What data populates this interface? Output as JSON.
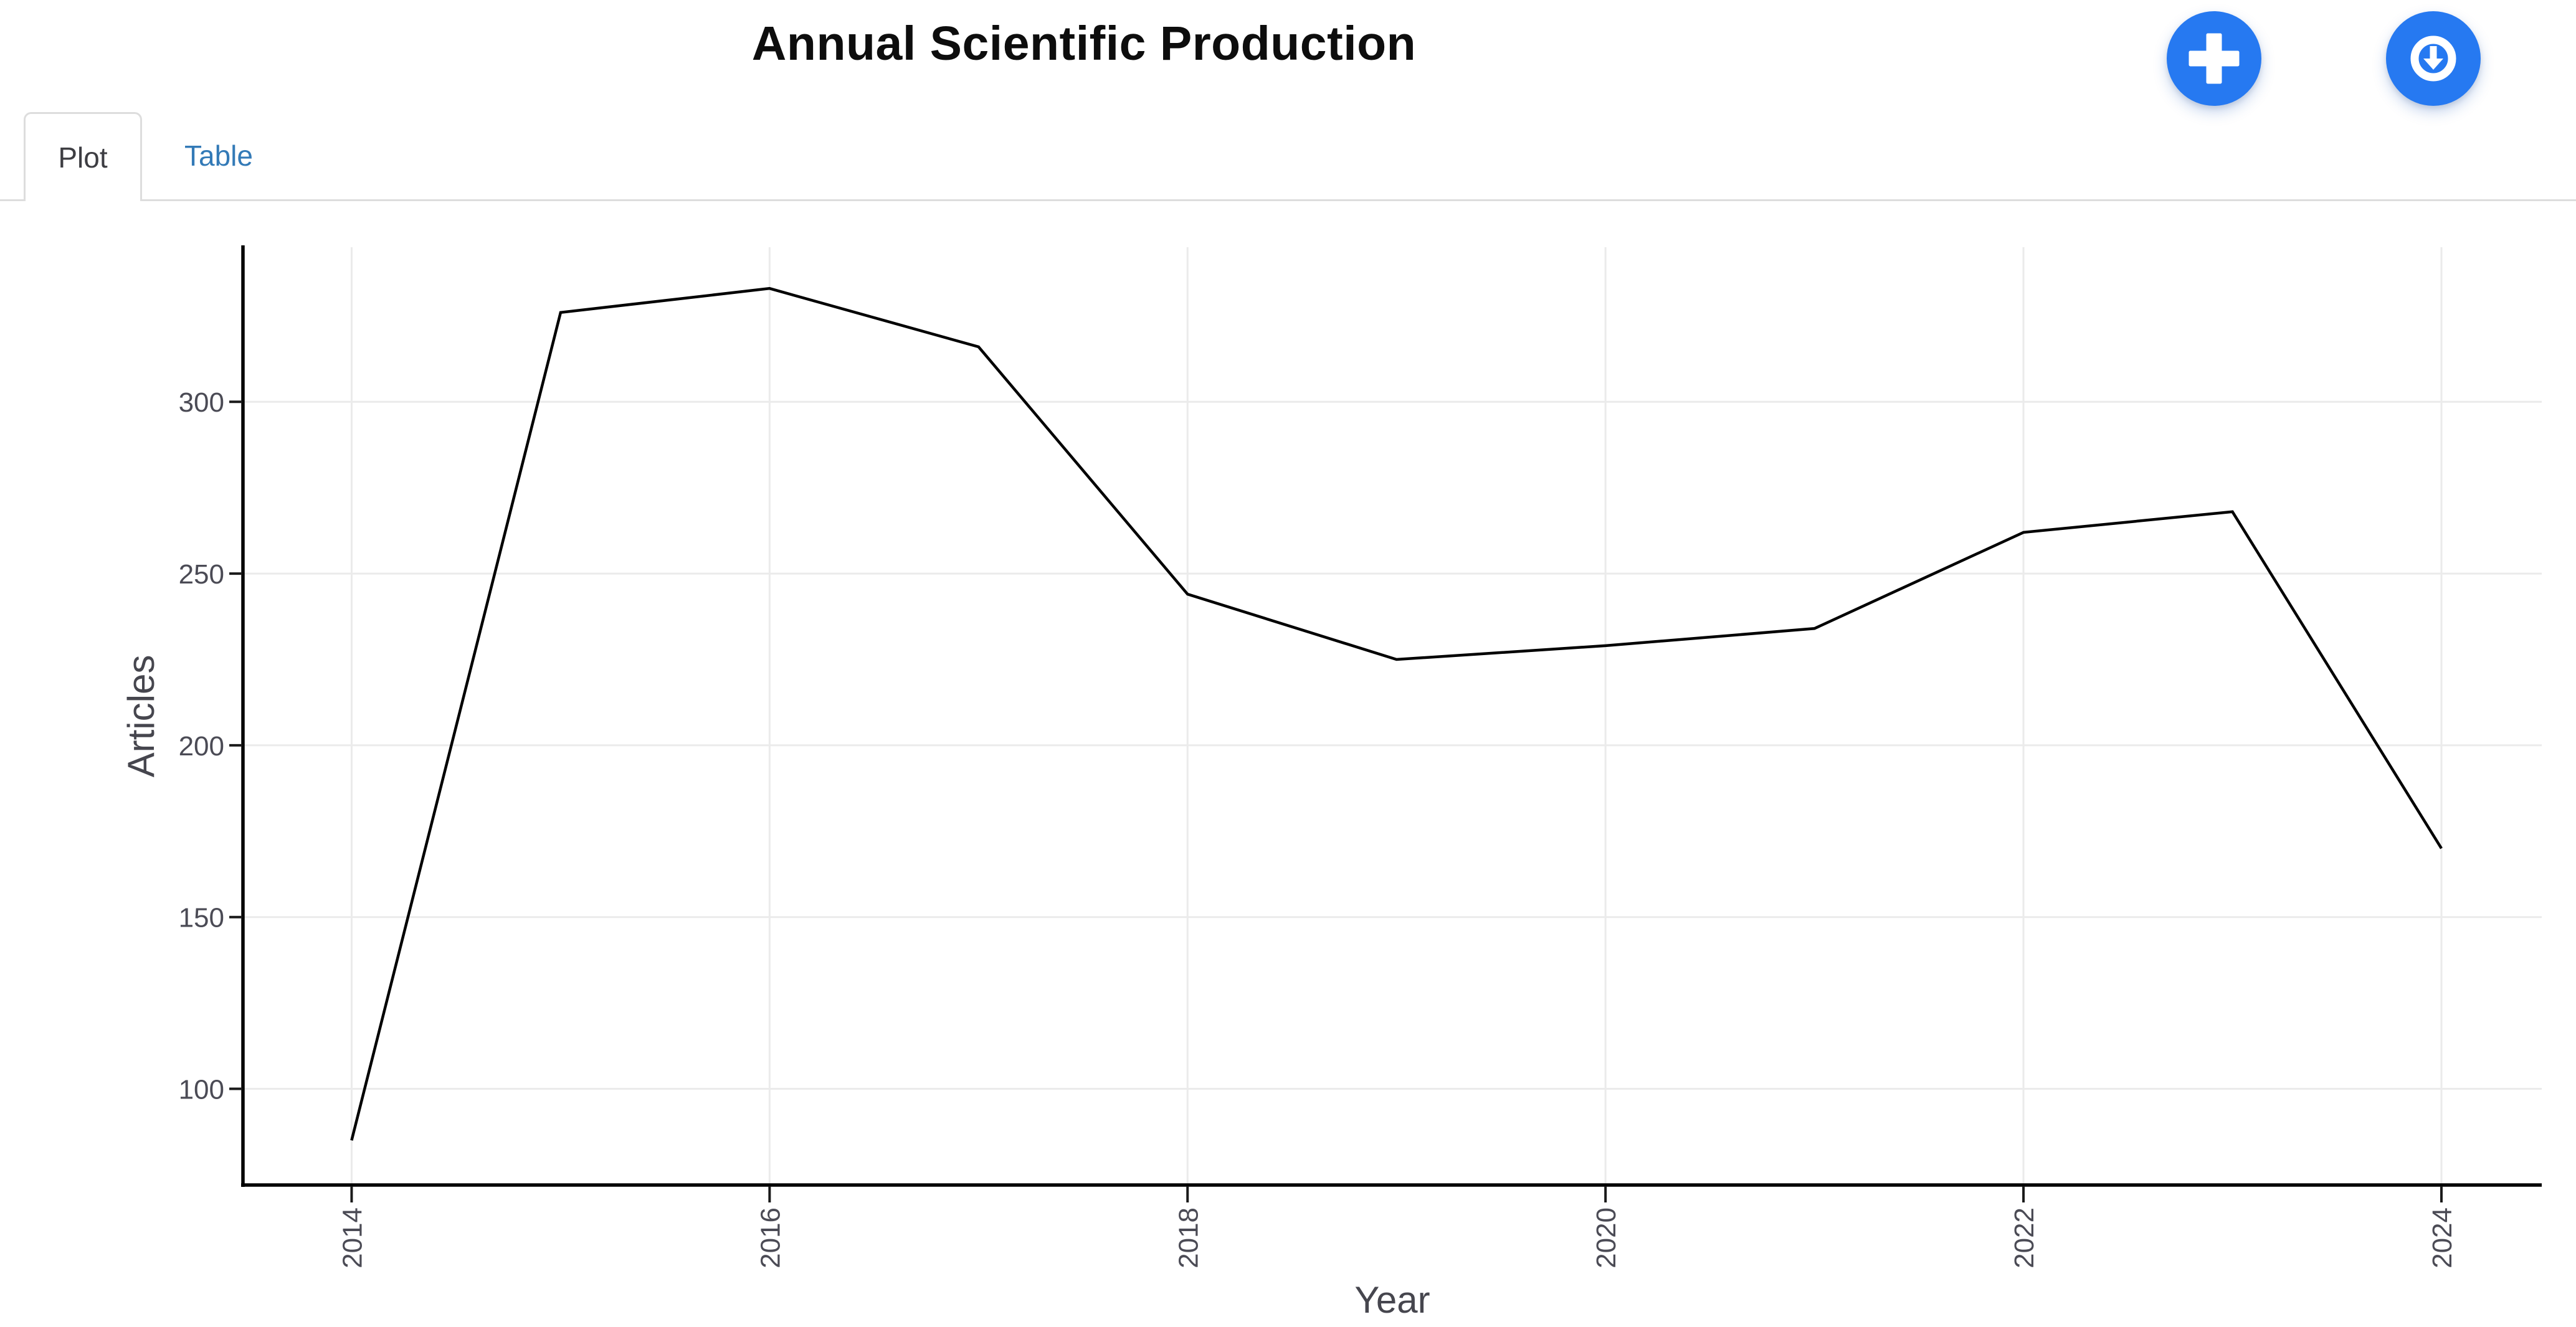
{
  "header": {
    "title": "Annual Scientific Production",
    "add_button_icon": "plus-icon",
    "download_button_icon": "download-circle-icon"
  },
  "tabs": {
    "plot": "Plot",
    "table": "Table"
  },
  "chart_data": {
    "type": "line",
    "title": "Annual Scientific Production",
    "xlabel": "Year",
    "ylabel": "Articles",
    "x": [
      2014,
      2015,
      2016,
      2017,
      2018,
      2019,
      2020,
      2021,
      2022,
      2023,
      2024
    ],
    "values": [
      85,
      326,
      333,
      316,
      244,
      225,
      229,
      234,
      262,
      268,
      170
    ],
    "x_ticks": [
      2014,
      2016,
      2018,
      2020,
      2022,
      2024
    ],
    "y_ticks": [
      100,
      150,
      200,
      250,
      300
    ],
    "xlim": [
      2013.48,
      2024.48
    ],
    "ylim": [
      72,
      345
    ],
    "grid": true,
    "legend_position": "none",
    "x_tick_rotation_deg": -90,
    "line_color": "#000000",
    "axis_line_color": "#000000",
    "grid_color": "#ebebeb",
    "tick_text_color": "#4b4b55",
    "axis_title_color": "#46464e",
    "plot_background": "#ffffff"
  },
  "colors": {
    "accent_blue": "#2679f1",
    "link_blue": "#337ab7",
    "tab_border": "#dddddd",
    "active_tab_text": "#3d3d42",
    "background": "#ffffff"
  }
}
